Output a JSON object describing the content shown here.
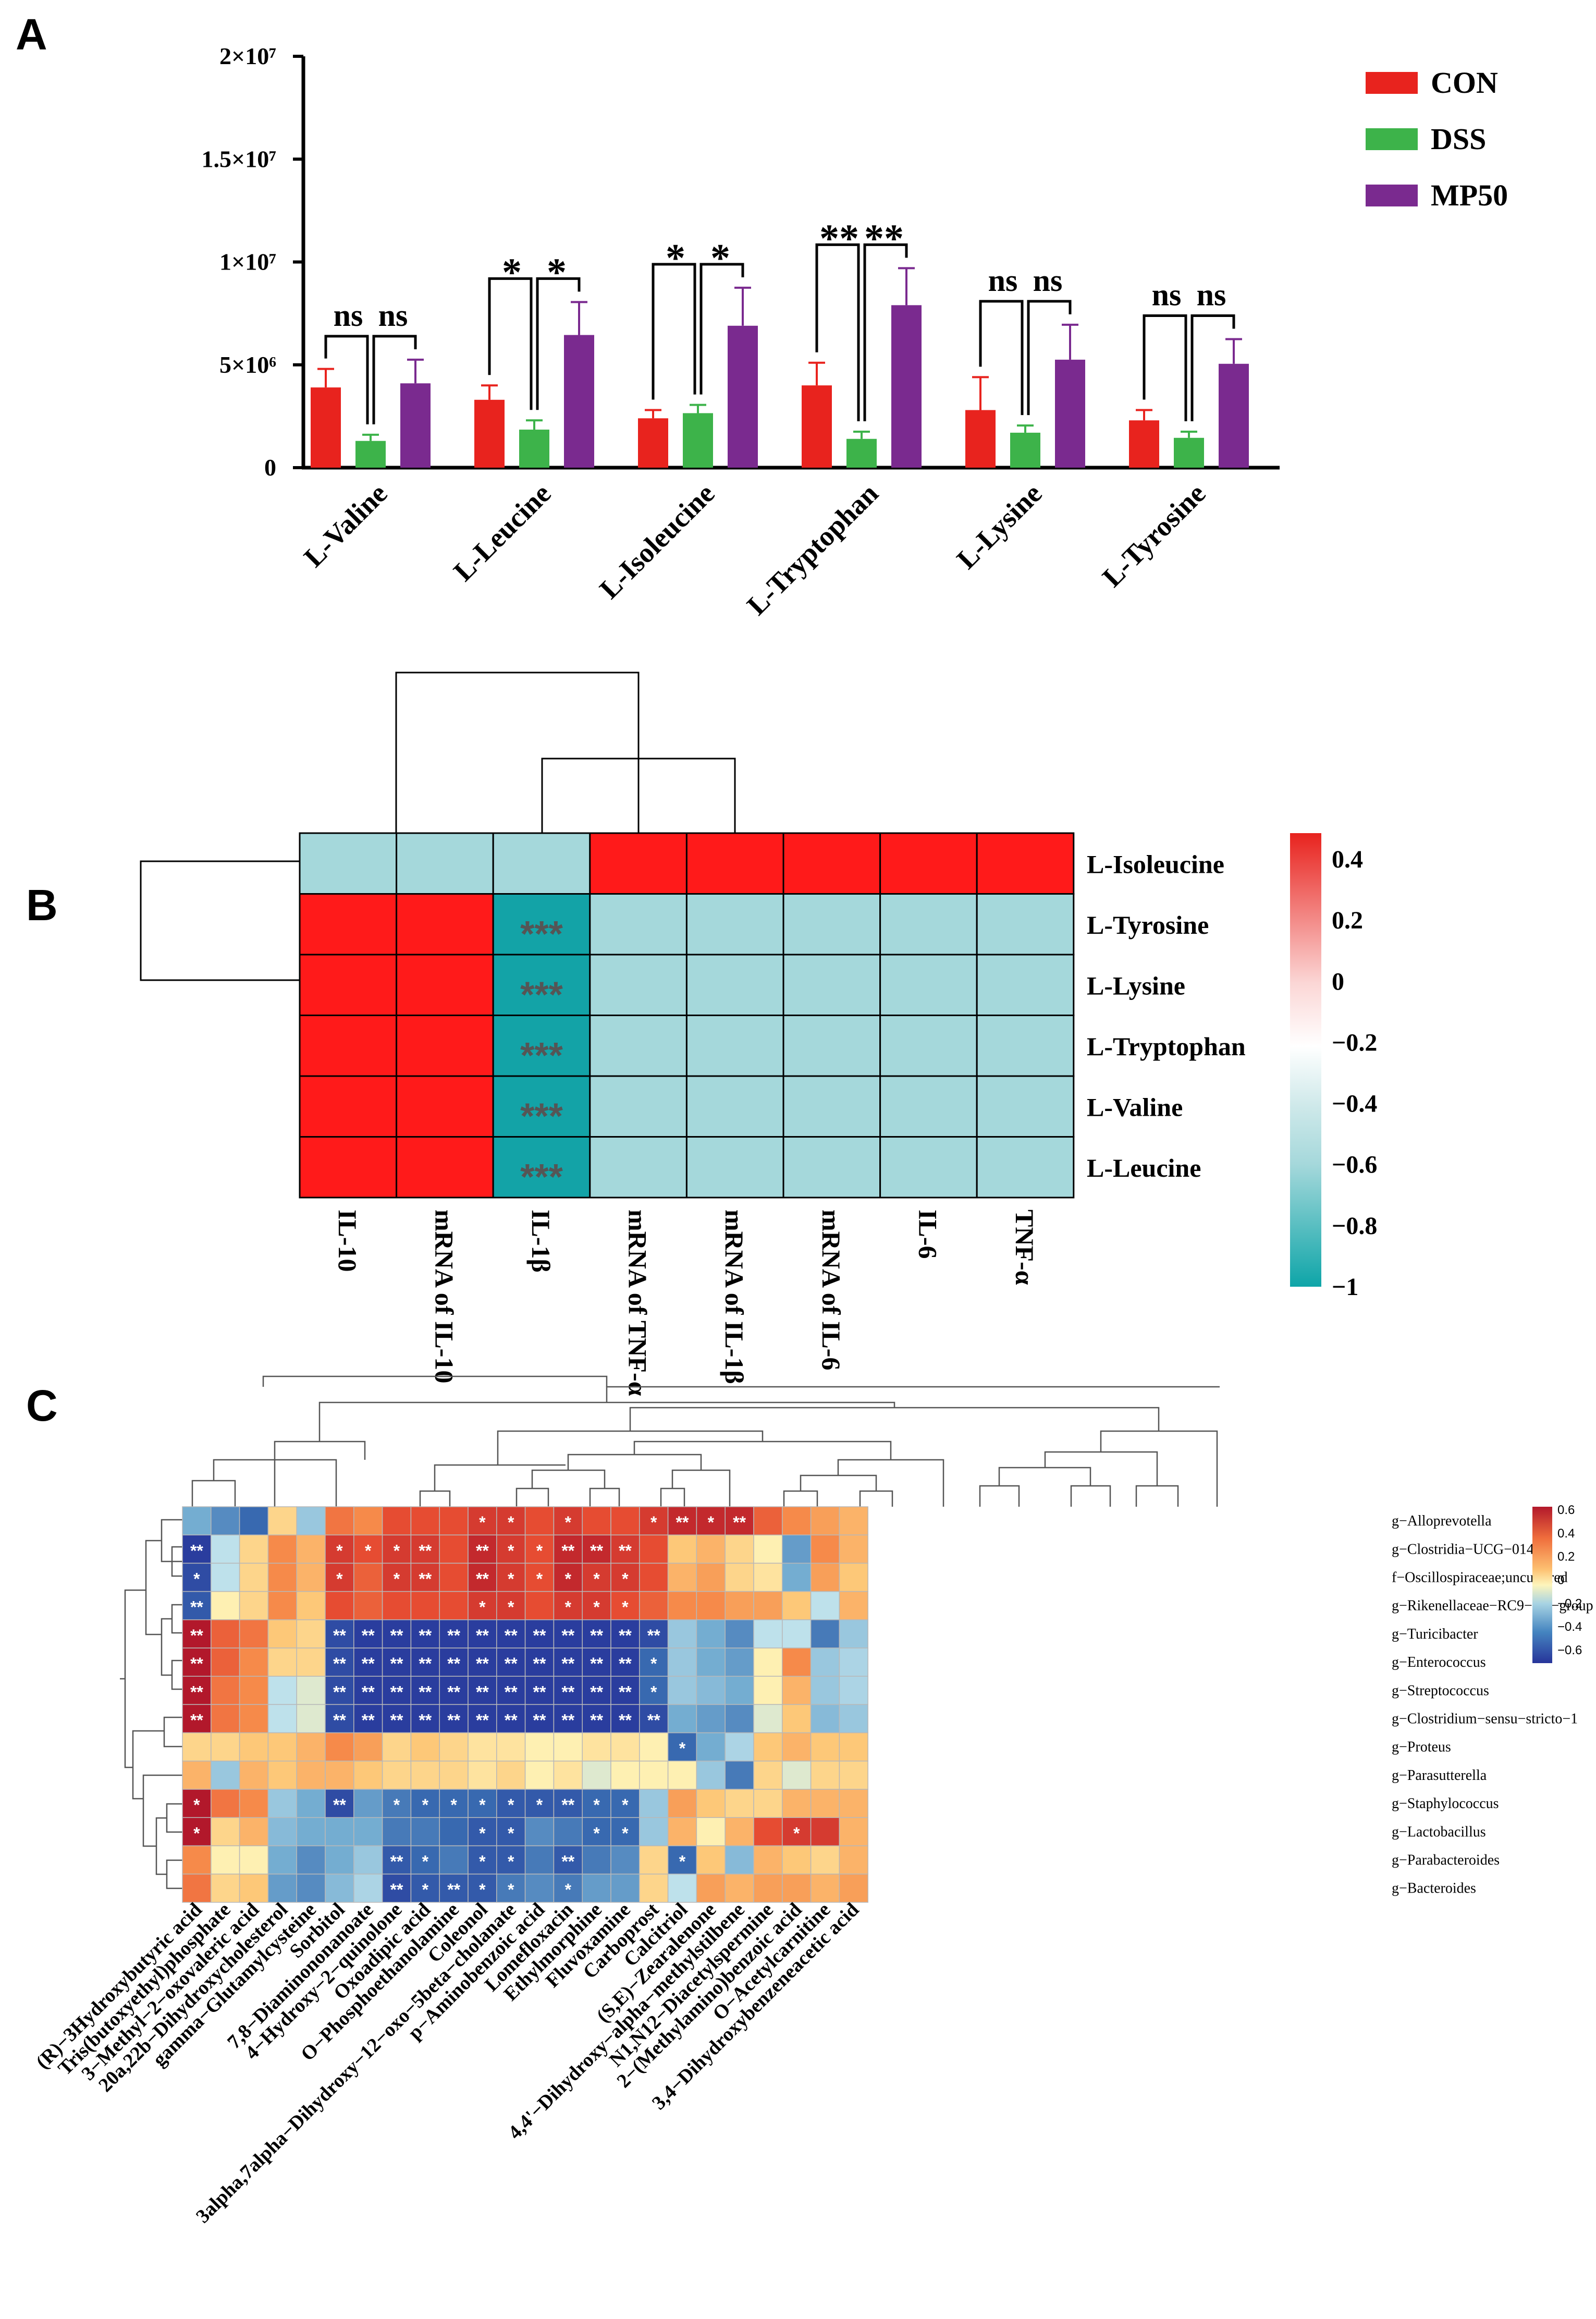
{
  "panel_labels": {
    "a": "A",
    "b": "B",
    "c": "C"
  },
  "chart_data": [
    {
      "type": "bar",
      "panel": "A",
      "categories": [
        "L-Valine",
        "L-Leucine",
        "L-Isoleucine",
        "L-Tryptophan",
        "L-Lysine",
        "L-Tyrosine"
      ],
      "series": [
        {
          "name": "CON",
          "color": "#e8231e",
          "values": [
            3.9,
            3.3,
            2.4,
            4.0,
            2.8,
            2.3
          ],
          "errors": [
            0.9,
            0.7,
            0.4,
            1.1,
            1.6,
            0.5
          ]
        },
        {
          "name": "DSS",
          "color": "#3db34a",
          "values": [
            1.3,
            1.85,
            2.65,
            1.4,
            1.7,
            1.45
          ],
          "errors": [
            0.3,
            0.45,
            0.4,
            0.35,
            0.35,
            0.3
          ]
        },
        {
          "name": "MP50",
          "color": "#7a2a8f",
          "values": [
            4.1,
            6.45,
            6.9,
            7.9,
            5.25,
            5.05
          ],
          "errors": [
            1.15,
            1.6,
            1.85,
            1.8,
            1.7,
            1.2
          ]
        }
      ],
      "ylim": [
        0,
        20
      ],
      "yticks": [
        0,
        5,
        10,
        15,
        20
      ],
      "ytick_labels": [
        "0",
        "5×10⁶",
        "1×10⁷",
        "1.5×10⁷",
        "2×10⁷"
      ],
      "significance": [
        {
          "left": "ns",
          "right": "ns"
        },
        {
          "left": "*",
          "right": "*"
        },
        {
          "left": "*",
          "right": "*"
        },
        {
          "left": "**",
          "right": "**"
        },
        {
          "left": "ns",
          "right": "ns"
        },
        {
          "left": "ns",
          "right": "ns"
        }
      ],
      "units_note": "values in units of 10^6"
    },
    {
      "type": "heatmap",
      "panel": "B",
      "rows": [
        "L-Isoleucine",
        "L-Tyrosine",
        "L-Lysine",
        "L-Tryptophan",
        "L-Valine",
        "L-Leucine"
      ],
      "columns": [
        "IL-10",
        "mRNA of IL-10",
        "IL-1β",
        "mRNA of TNF-α",
        "mRNA of IL-1β",
        "mRNA of IL-6",
        "IL-6",
        "TNF-α"
      ],
      "values": [
        [
          -0.6,
          -0.6,
          -0.6,
          0.4,
          0.4,
          0.4,
          0.4,
          0.4
        ],
        [
          0.4,
          0.4,
          -1,
          -0.6,
          -0.6,
          -0.6,
          -0.6,
          -0.6
        ],
        [
          0.4,
          0.4,
          -1,
          -0.6,
          -0.6,
          -0.6,
          -0.6,
          -0.6
        ],
        [
          0.4,
          0.4,
          -1,
          -0.6,
          -0.6,
          -0.6,
          -0.6,
          -0.6
        ],
        [
          0.4,
          0.4,
          -1,
          -0.6,
          -0.6,
          -0.6,
          -0.6,
          -0.6
        ],
        [
          0.4,
          0.4,
          -1,
          -0.6,
          -0.6,
          -0.6,
          -0.6,
          -0.6
        ]
      ],
      "stars": [
        [
          "",
          "",
          "",
          "",
          "",
          "",
          "",
          ""
        ],
        [
          "",
          "",
          "***",
          "",
          "",
          "",
          "",
          ""
        ],
        [
          "",
          "",
          "***",
          "",
          "",
          "",
          "",
          ""
        ],
        [
          "",
          "",
          "***",
          "",
          "",
          "",
          "",
          ""
        ],
        [
          "",
          "",
          "***",
          "",
          "",
          "",
          "",
          ""
        ],
        [
          "",
          "",
          "***",
          "",
          "",
          "",
          "",
          ""
        ]
      ],
      "colorbar_ticks": [
        "0.4",
        "0.2",
        "0",
        "−0.2",
        "−0.4",
        "−0.6",
        "−0.8",
        "−1"
      ],
      "colorbar_values": [
        0.4,
        0.2,
        0,
        -0.2,
        -0.4,
        -0.6,
        -0.8,
        -1
      ],
      "vmin": -1,
      "vmax": 0.5
    },
    {
      "type": "heatmap",
      "panel": "C",
      "rows": [
        "g−Alloprevotella",
        "g−Clostridia−UCG−014",
        "f−Oscillospiraceae;uncultured",
        "g−Rikenellaceae−RC9−gut−group",
        "g−Turicibacter",
        "g−Enterococcus",
        "g−Streptococcus",
        "g−Clostridium−sensu−stricto−1",
        "g−Proteus",
        "g−Parasutterella",
        "g−Staphylococcus",
        "g−Lactobacillus",
        "g−Parabacteroides",
        "g−Bacteroides"
      ],
      "columns": [
        "(R)−3Hydroxybutyric acid",
        "Tris(butoxyethyl)phosphate",
        "3−Methyl−2−oxovaleric acid",
        "20a,22b−Dihydroxycholesterol",
        "gamma−Glutamylcysteine",
        "Sorbitol",
        "7,8−Diaminononanoate",
        "4−Hydroxy−2−quinolone",
        "Oxoadipic acid",
        "O−Phosphoethanolamine",
        "Coleonol",
        "3alpha,7alpha−Dihydroxy−12−oxo−5beta−cholanate",
        "p−Aminobenzoic acid",
        "Lomefloxacin",
        "Ethylmorphine",
        "Fluvoxamine",
        "Carboprost",
        "Calcitriol",
        "(S,E)−Zearalenone",
        "4,4'−Dihydroxy−alpha−methylstilbene",
        "N1,N12−Diacetylspermine",
        "2−(Methylamino)benzoic acid",
        "O−Acetylcarnitine",
        "3,4−Dihydroxybenzeneacetic acid"
      ],
      "values": [
        [
          -0.3,
          -0.4,
          -0.5,
          0.1,
          -0.2,
          0.35,
          0.3,
          0.45,
          0.45,
          0.45,
          0.5,
          0.5,
          0.45,
          0.5,
          0.45,
          0.45,
          0.5,
          0.55,
          0.55,
          0.55,
          0.4,
          0.3,
          0.25,
          0.2
        ],
        [
          -0.65,
          -0.1,
          0.1,
          0.3,
          0.2,
          0.5,
          0.45,
          0.5,
          0.5,
          0.45,
          0.55,
          0.5,
          0.45,
          0.55,
          0.55,
          0.5,
          0.45,
          0.15,
          0.2,
          0.1,
          0.0,
          -0.35,
          0.3,
          0.2
        ],
        [
          -0.6,
          -0.1,
          0.1,
          0.3,
          0.2,
          0.5,
          0.4,
          0.5,
          0.5,
          0.45,
          0.55,
          0.5,
          0.45,
          0.55,
          0.5,
          0.5,
          0.45,
          0.2,
          0.25,
          0.1,
          0.05,
          -0.3,
          0.25,
          0.15
        ],
        [
          -0.55,
          0.0,
          0.1,
          0.3,
          0.15,
          0.45,
          0.4,
          0.45,
          0.45,
          0.45,
          0.5,
          0.5,
          0.45,
          0.5,
          0.5,
          0.45,
          0.4,
          0.3,
          0.3,
          0.25,
          0.25,
          0.15,
          -0.1,
          0.2
        ],
        [
          0.6,
          0.4,
          0.35,
          0.15,
          0.1,
          -0.6,
          -0.65,
          -0.65,
          -0.65,
          -0.65,
          -0.65,
          -0.65,
          -0.65,
          -0.65,
          -0.65,
          -0.65,
          -0.6,
          -0.2,
          -0.3,
          -0.4,
          -0.1,
          -0.1,
          -0.45,
          -0.2
        ],
        [
          0.6,
          0.4,
          0.3,
          0.1,
          0.1,
          -0.6,
          -0.65,
          -0.65,
          -0.65,
          -0.65,
          -0.65,
          -0.65,
          -0.65,
          -0.65,
          -0.65,
          -0.65,
          -0.5,
          -0.2,
          -0.3,
          -0.35,
          0.0,
          0.3,
          -0.2,
          -0.15
        ],
        [
          0.6,
          0.35,
          0.3,
          -0.1,
          -0.05,
          -0.6,
          -0.65,
          -0.65,
          -0.65,
          -0.65,
          -0.65,
          -0.65,
          -0.65,
          -0.65,
          -0.65,
          -0.65,
          -0.5,
          -0.2,
          -0.25,
          -0.3,
          0.0,
          0.2,
          -0.2,
          -0.15
        ],
        [
          0.6,
          0.35,
          0.3,
          -0.1,
          -0.05,
          -0.6,
          -0.65,
          -0.65,
          -0.65,
          -0.65,
          -0.65,
          -0.65,
          -0.65,
          -0.65,
          -0.65,
          -0.65,
          -0.6,
          -0.3,
          -0.35,
          -0.4,
          -0.05,
          0.15,
          -0.25,
          -0.2
        ],
        [
          0.1,
          0.1,
          0.15,
          0.15,
          0.2,
          0.3,
          0.25,
          0.1,
          0.15,
          0.1,
          0.05,
          0.05,
          0.0,
          0.0,
          0.05,
          0.05,
          0.0,
          -0.5,
          -0.3,
          -0.15,
          0.15,
          0.2,
          0.15,
          0.15
        ],
        [
          0.2,
          -0.2,
          0.2,
          0.15,
          0.2,
          0.2,
          0.15,
          0.1,
          0.1,
          0.1,
          0.05,
          0.1,
          0.0,
          0.05,
          -0.05,
          0.0,
          0.0,
          0.0,
          -0.2,
          -0.45,
          0.1,
          -0.05,
          0.1,
          0.1
        ],
        [
          0.6,
          0.35,
          0.3,
          -0.2,
          -0.3,
          -0.6,
          -0.35,
          -0.45,
          -0.5,
          -0.5,
          -0.5,
          -0.55,
          -0.55,
          -0.55,
          -0.5,
          -0.5,
          -0.2,
          0.25,
          0.15,
          0.1,
          0.1,
          0.2,
          0.2,
          0.2
        ],
        [
          0.6,
          0.1,
          0.2,
          -0.25,
          -0.3,
          -0.3,
          -0.3,
          -0.45,
          -0.45,
          -0.5,
          -0.55,
          -0.55,
          -0.4,
          -0.45,
          -0.5,
          -0.5,
          -0.2,
          0.2,
          0.0,
          0.2,
          0.45,
          0.5,
          0.5,
          0.2
        ],
        [
          0.3,
          0.0,
          0.0,
          -0.3,
          -0.4,
          -0.3,
          -0.2,
          -0.55,
          -0.5,
          -0.45,
          -0.55,
          -0.55,
          -0.45,
          -0.55,
          -0.45,
          -0.4,
          0.1,
          -0.5,
          0.15,
          -0.25,
          0.2,
          0.15,
          0.1,
          0.2
        ],
        [
          0.35,
          0.1,
          0.15,
          -0.35,
          -0.4,
          -0.25,
          -0.15,
          -0.6,
          -0.55,
          -0.55,
          -0.55,
          -0.45,
          -0.4,
          -0.45,
          -0.35,
          -0.35,
          0.1,
          -0.1,
          0.25,
          0.2,
          0.25,
          0.25,
          0.2,
          0.25
        ]
      ],
      "stars": [
        [
          "",
          "",
          "",
          "",
          "",
          "",
          "",
          "",
          "",
          "",
          "*",
          "*",
          "",
          "*",
          "",
          "",
          "*",
          "**",
          "*",
          "**",
          "",
          "",
          "",
          ""
        ],
        [
          "**",
          "",
          "",
          "",
          "",
          "*",
          "*",
          "*",
          "**",
          "",
          "**",
          "*",
          "*",
          "**",
          "**",
          "**",
          "",
          "",
          "",
          "",
          "",
          "",
          "",
          ""
        ],
        [
          "*",
          "",
          "",
          "",
          "",
          "*",
          "",
          "*",
          "**",
          "",
          "**",
          "*",
          "*",
          "*",
          "*",
          "*",
          "",
          "",
          "",
          "",
          "",
          "",
          "",
          ""
        ],
        [
          "**",
          "",
          "",
          "",
          "",
          "",
          "",
          "",
          "",
          "",
          "*",
          "*",
          "",
          "*",
          "*",
          "*",
          "",
          "",
          "",
          "",
          "",
          "",
          "",
          ""
        ],
        [
          "**",
          "",
          "",
          "",
          "",
          "**",
          "**",
          "**",
          "**",
          "**",
          "**",
          "**",
          "**",
          "**",
          "**",
          "**",
          "**",
          "",
          "",
          "",
          "",
          "",
          "",
          ""
        ],
        [
          "**",
          "",
          "",
          "",
          "",
          "**",
          "**",
          "**",
          "**",
          "**",
          "**",
          "**",
          "**",
          "**",
          "**",
          "**",
          "*",
          "",
          "",
          "",
          "",
          "",
          "",
          ""
        ],
        [
          "**",
          "",
          "",
          "",
          "",
          "**",
          "**",
          "**",
          "**",
          "**",
          "**",
          "**",
          "**",
          "**",
          "**",
          "**",
          "*",
          "",
          "",
          "",
          "",
          "",
          "",
          ""
        ],
        [
          "**",
          "",
          "",
          "",
          "",
          "**",
          "**",
          "**",
          "**",
          "**",
          "**",
          "**",
          "**",
          "**",
          "**",
          "**",
          "**",
          "",
          "",
          "",
          "",
          "",
          "",
          ""
        ],
        [
          "",
          "",
          "",
          "",
          "",
          "",
          "",
          "",
          "",
          "",
          "",
          "",
          "",
          "",
          "",
          "",
          "",
          "*",
          "",
          "",
          "",
          "",
          "",
          ""
        ],
        [
          "",
          "",
          "",
          "",
          "",
          "",
          "",
          "",
          "",
          "",
          "",
          "",
          "",
          "",
          "",
          "",
          "",
          "",
          "",
          "",
          "",
          "",
          "",
          ""
        ],
        [
          "*",
          "",
          "",
          "",
          "",
          "**",
          "",
          "*",
          "*",
          "*",
          "*",
          "*",
          "*",
          "**",
          "*",
          "*",
          "",
          "",
          "",
          "",
          "",
          "",
          "",
          ""
        ],
        [
          "*",
          "",
          "",
          "",
          "",
          "",
          "",
          "",
          "",
          "",
          "*",
          "*",
          "",
          "",
          "*",
          "*",
          "",
          "",
          "",
          "",
          "",
          "*",
          "",
          ""
        ],
        [
          "",
          "",
          "",
          "",
          "",
          "",
          "",
          "**",
          "*",
          "",
          "*",
          "*",
          "",
          "**",
          "",
          "",
          "",
          "*",
          "",
          "",
          "",
          "",
          "",
          ""
        ],
        [
          "",
          "",
          "",
          "",
          "",
          "",
          "",
          "**",
          "*",
          "**",
          "*",
          "*",
          "",
          "*",
          "",
          "",
          "",
          "",
          "",
          "",
          "",
          "",
          "",
          ""
        ]
      ],
      "colorbar_ticks": [
        "0.6",
        "0.4",
        "0.2",
        "0",
        "−0.2",
        "−0.4",
        "−0.6"
      ],
      "colorbar_values": [
        0.6,
        0.4,
        0.2,
        0,
        -0.2,
        -0.4,
        -0.6
      ],
      "vmin": -0.68,
      "vmax": 0.6
    }
  ]
}
